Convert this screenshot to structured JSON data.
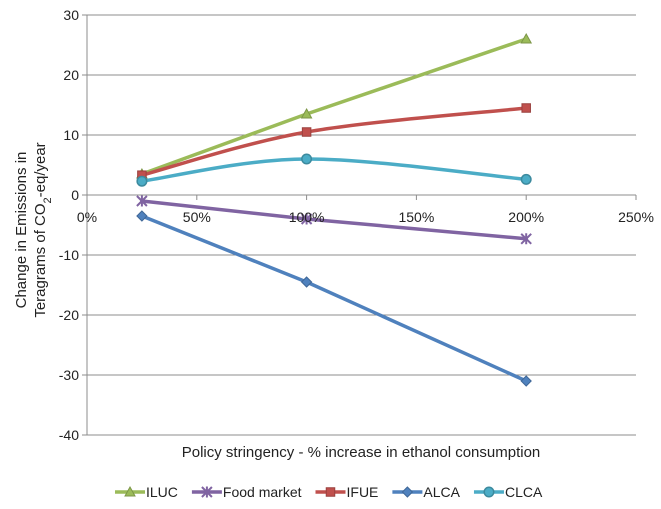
{
  "chart_data": {
    "type": "line",
    "title": "",
    "xlabel": "Policy stringency - % increase in ethanol consumption",
    "ylabel_line1": "Change in Emissions in",
    "ylabel_line2_prefix": "Teragrams  of CO",
    "ylabel_subscript": "2",
    "ylabel_line2_suffix": "-eq/year",
    "xlim": [
      0,
      250
    ],
    "ylim": [
      -40,
      30
    ],
    "x_ticks": [
      {
        "value": 0,
        "label": "0%"
      },
      {
        "value": 50,
        "label": "50%"
      },
      {
        "value": 100,
        "label": "100%"
      },
      {
        "value": 150,
        "label": "150%"
      },
      {
        "value": 200,
        "label": "200%"
      },
      {
        "value": 250,
        "label": "250%"
      }
    ],
    "y_ticks": [
      {
        "value": 30,
        "label": "30"
      },
      {
        "value": 20,
        "label": "20"
      },
      {
        "value": 10,
        "label": "10"
      },
      {
        "value": 0,
        "label": "0"
      },
      {
        "value": -10,
        "label": "-10"
      },
      {
        "value": -20,
        "label": "-20"
      },
      {
        "value": -30,
        "label": "-30"
      },
      {
        "value": -40,
        "label": "-40"
      }
    ],
    "grid": "horizontal",
    "legend_position": "bottom",
    "x": [
      25,
      100,
      200
    ],
    "series": [
      {
        "name": "ILUC",
        "values": [
          3.5,
          13.5,
          26
        ],
        "color": "#9bbb59",
        "marker": "triangle",
        "smooth": false
      },
      {
        "name": "Food market",
        "values": [
          -1,
          -4,
          -7.3
        ],
        "color": "#8064a2",
        "marker": "star",
        "smooth": false
      },
      {
        "name": "IFUE",
        "values": [
          3.3,
          10.5,
          14.5
        ],
        "color": "#c0504d",
        "marker": "square",
        "smooth": true
      },
      {
        "name": "ALCA",
        "values": [
          -3.5,
          -14.5,
          -31
        ],
        "color": "#4f81bd",
        "marker": "diamond",
        "smooth": false
      },
      {
        "name": "CLCA",
        "values": [
          2.3,
          6,
          2.6
        ],
        "color": "#4bacc6",
        "marker": "circle",
        "smooth": true
      }
    ]
  }
}
